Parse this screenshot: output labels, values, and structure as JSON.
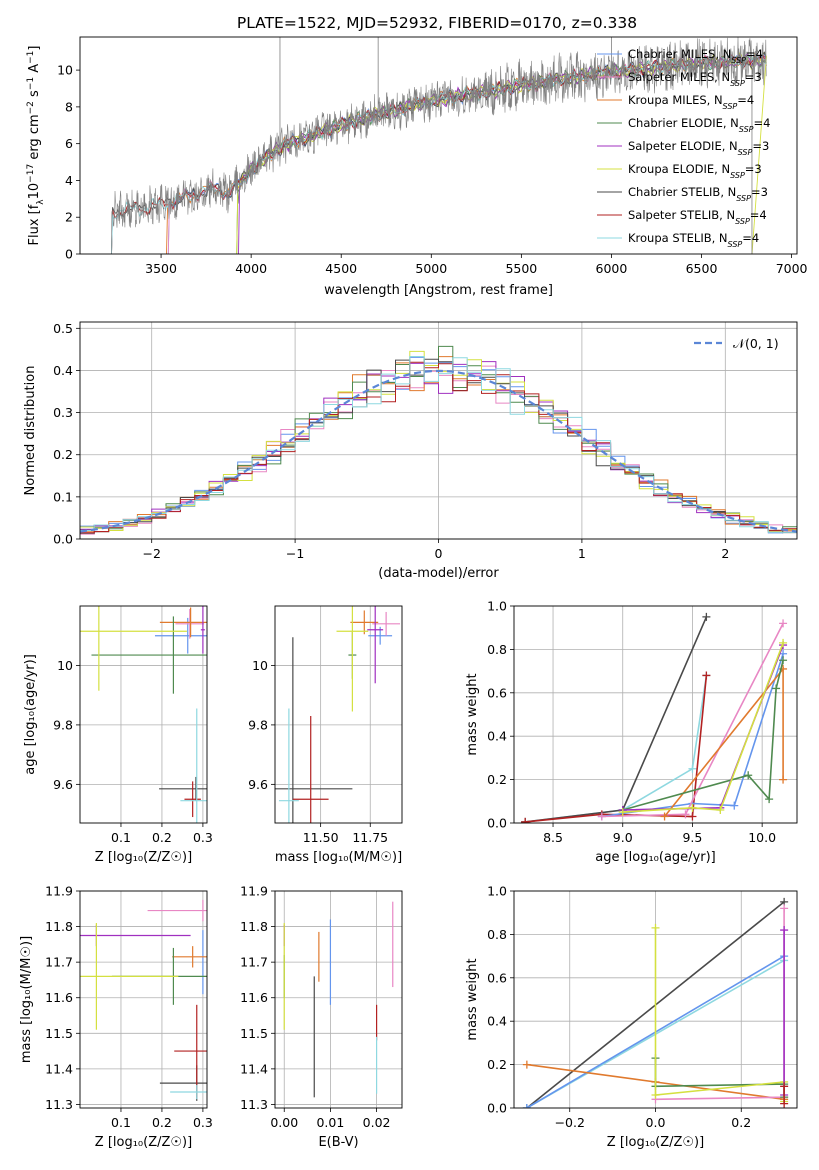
{
  "figure_title": "PLATE=1522, MJD=52932, FIBERID=0170, z=0.338",
  "colors": {
    "Chabrier MILES": "#6495ED",
    "Salpeter MILES": "#E887C4",
    "Kroupa MILES": "#E07A2E",
    "Chabrier ELODIE": "#4F8A4F",
    "Salpeter ELODIE": "#A030C0",
    "Kroupa ELODIE": "#D4E040",
    "Chabrier STELIB": "#4A4A4A",
    "Salpeter STELIB": "#B22222",
    "Kroupa STELIB": "#8ED8E0",
    "data": "#808080"
  },
  "chart_data": [
    {
      "id": "spectrum",
      "type": "line",
      "xlabel": "wavelength [Angstrom, rest frame]",
      "ylabel_parts": [
        "Flux [f",
        "λ",
        "10",
        "−17",
        " erg cm",
        "−2",
        " s",
        "−1",
        " A",
        "−1",
        "]"
      ],
      "xlim": [
        3050,
        7030
      ],
      "ylim": [
        0,
        11.8
      ],
      "xticks": [
        3500,
        4000,
        4500,
        5000,
        5500,
        6000,
        6500,
        7000
      ],
      "yticks": [
        0,
        2,
        4,
        6,
        8,
        10
      ],
      "continuum_knots": [
        [
          3220,
          0.0
        ],
        [
          3225,
          2.2
        ],
        [
          3300,
          2.4
        ],
        [
          3400,
          2.5
        ],
        [
          3500,
          2.7
        ],
        [
          3600,
          3.0
        ],
        [
          3700,
          3.3
        ],
        [
          3800,
          3.6
        ],
        [
          3870,
          3.3
        ],
        [
          3950,
          4.0
        ],
        [
          4000,
          4.6
        ],
        [
          4100,
          5.4
        ],
        [
          4200,
          6.0
        ],
        [
          4300,
          6.3
        ],
        [
          4400,
          6.7
        ],
        [
          4500,
          7.0
        ],
        [
          4600,
          7.3
        ],
        [
          4700,
          7.6
        ],
        [
          4800,
          7.8
        ],
        [
          4900,
          8.1
        ],
        [
          5000,
          8.3
        ],
        [
          5100,
          8.5
        ],
        [
          5200,
          8.7
        ],
        [
          5300,
          8.8
        ],
        [
          5400,
          9.0
        ],
        [
          5500,
          9.2
        ],
        [
          5600,
          9.3
        ],
        [
          5700,
          9.5
        ],
        [
          5800,
          9.6
        ],
        [
          5900,
          9.8
        ],
        [
          6000,
          9.9
        ],
        [
          6100,
          10.0
        ],
        [
          6200,
          10.1
        ],
        [
          6300,
          10.2
        ],
        [
          6400,
          10.3
        ],
        [
          6500,
          10.4
        ],
        [
          6600,
          10.4
        ],
        [
          6700,
          10.5
        ],
        [
          6780,
          10.5
        ],
        [
          6860,
          10.6
        ]
      ],
      "spikes": [
        [
          4160,
          11.8
        ],
        [
          4705,
          11.8
        ],
        [
          6000,
          11.8
        ]
      ],
      "dips": [
        [
          6780,
          0.0
        ]
      ],
      "series": [
        {
          "name": "Chabrier MILES",
          "sub": "SSP",
          "n": "4"
        },
        {
          "name": "Salpeter MILES",
          "sub": "SSP",
          "n": "3"
        },
        {
          "name": "Kroupa MILES",
          "sub": "SSP",
          "n": "4"
        },
        {
          "name": "Chabrier ELODIE",
          "sub": "SSP",
          "n": "4"
        },
        {
          "name": "Salpeter ELODIE",
          "sub": "SSP",
          "n": "3"
        },
        {
          "name": "Kroupa ELODIE",
          "sub": "SSP",
          "n": "3"
        },
        {
          "name": "Chabrier STELIB",
          "sub": "SSP",
          "n": "3"
        },
        {
          "name": "Salpeter STELIB",
          "sub": "SSP",
          "n": "4"
        },
        {
          "name": "Kroupa STELIB",
          "sub": "SSP",
          "n": "4"
        }
      ],
      "legend_loc": "upper right"
    },
    {
      "id": "residuals",
      "type": "line",
      "xlabel": "(data-model)/error",
      "ylabel": "Normed distribution",
      "xlim": [
        -2.5,
        2.5
      ],
      "ylim": [
        0,
        0.515
      ],
      "xticks": [
        -2,
        -1,
        0,
        1,
        2
      ],
      "xtick_labels": [
        "−2",
        "−1",
        "0",
        "1",
        "2"
      ],
      "yticks": [
        0.0,
        0.1,
        0.2,
        0.3,
        0.4,
        0.5
      ],
      "ytick_labels": [
        "0.0",
        "0.1",
        "0.2",
        "0.3",
        "0.4",
        "0.5"
      ],
      "bin_width": 0.1,
      "legend_label": "𝒩(0, 1)",
      "grid": true
    },
    {
      "id": "age_vs_Z",
      "type": "scatter",
      "xlabel": "Z [log₁₀(Z/Z☉)]",
      "ylabel": "age  [log₁₀(age/yr)]",
      "xlim": [
        0.0,
        0.31
      ],
      "ylim": [
        9.47,
        10.2
      ],
      "xticks": [
        0.1,
        0.2,
        0.3
      ],
      "yticks": [
        9.6,
        9.8,
        10.0
      ],
      "points": [
        {
          "s": "Chabrier MILES",
          "x": 0.263,
          "y": 10.1,
          "xerr": 0.08,
          "yerr": 0.06
        },
        {
          "s": "Salpeter MILES",
          "x": 0.268,
          "y": 10.14,
          "xerr": 0.035,
          "yerr": 0.05
        },
        {
          "s": "Kroupa MILES",
          "x": 0.27,
          "y": 10.145,
          "xerr": 0.075,
          "yerr": 0.05
        },
        {
          "s": "Chabrier ELODIE",
          "x": 0.228,
          "y": 10.035,
          "xerr": 0.2,
          "yerr": 0.13
        },
        {
          "s": "Salpeter ELODIE",
          "x": 0.3,
          "y": 10.12,
          "xerr": 0.005,
          "yerr": 0.08
        },
        {
          "s": "Kroupa ELODIE",
          "x": 0.046,
          "y": 10.115,
          "xerr": 0.215,
          "yerr": 0.2
        },
        {
          "s": "Chabrier STELIB",
          "x": 0.283,
          "y": 9.585,
          "xerr": 0.09,
          "yerr": 0.04
        },
        {
          "s": "Salpeter STELIB",
          "x": 0.275,
          "y": 9.55,
          "xerr": 0.02,
          "yerr": 0.06
        },
        {
          "s": "Kroupa STELIB",
          "x": 0.285,
          "y": 9.545,
          "xerr": 0.04,
          "yerr": 0.31
        }
      ]
    },
    {
      "id": "age_vs_mass",
      "type": "scatter",
      "xlabel": "mass [log₁₀(M/M☉)]",
      "ylabel": "",
      "xlim": [
        11.27,
        11.91
      ],
      "ylim": [
        9.47,
        10.2
      ],
      "xticks": [
        11.5,
        11.75
      ],
      "xtick_labels": [
        "11.50",
        "11.75"
      ],
      "yticks": [
        9.6,
        9.8,
        10.0
      ],
      "points": [
        {
          "s": "Chabrier MILES",
          "x": 11.8,
          "y": 10.1,
          "xerr": 0.06,
          "yerr": 0.03
        },
        {
          "s": "Salpeter MILES",
          "x": 11.83,
          "y": 10.14,
          "xerr": 0.07,
          "yerr": 0.04
        },
        {
          "s": "Kroupa MILES",
          "x": 11.72,
          "y": 10.145,
          "xerr": 0.07,
          "yerr": 0.04
        },
        {
          "s": "Chabrier ELODIE",
          "x": 11.66,
          "y": 10.035,
          "xerr": 0.02,
          "yerr": 0.08
        },
        {
          "s": "Salpeter ELODIE",
          "x": 11.775,
          "y": 10.12,
          "xerr": 0.04,
          "yerr": 0.18
        },
        {
          "s": "Kroupa ELODIE",
          "x": 11.66,
          "y": 10.115,
          "xerr": 0.08,
          "yerr": 0.27
        },
        {
          "s": "Chabrier STELIB",
          "x": 11.36,
          "y": 9.585,
          "xerr": 0.3,
          "yerr": 0.51
        },
        {
          "s": "Salpeter STELIB",
          "x": 11.45,
          "y": 9.55,
          "xerr": 0.09,
          "yerr": 0.28
        },
        {
          "s": "Kroupa STELIB",
          "x": 11.34,
          "y": 9.545,
          "xerr": 0.05,
          "yerr": 0.31
        }
      ]
    },
    {
      "id": "weight_vs_age",
      "type": "line",
      "xlabel": "age  [log₁₀(age/yr)]",
      "ylabel": "mass weight",
      "xlim": [
        8.22,
        10.25
      ],
      "ylim": [
        0,
        1.0
      ],
      "xticks": [
        8.5,
        9.0,
        9.5,
        10.0
      ],
      "xtick_labels": [
        "8.5",
        "9.0",
        "9.5",
        "10.0"
      ],
      "yticks": [
        0,
        0.2,
        0.4,
        0.6,
        0.8,
        1.0
      ],
      "ytick_labels": [
        "0.0",
        "0.2",
        "0.4",
        "0.6",
        "0.8",
        "1.0"
      ],
      "grid": true,
      "series": [
        {
          "s": "Kroupa STELIB",
          "pts": [
            [
              8.3,
              0.005
            ],
            [
              9.0,
              0.06
            ],
            [
              9.5,
              0.25
            ],
            [
              9.6,
              0.68
            ]
          ]
        },
        {
          "s": "Chabrier STELIB",
          "pts": [
            [
              8.3,
              0.005
            ],
            [
              9.0,
              0.06
            ],
            [
              9.6,
              0.95
            ]
          ]
        },
        {
          "s": "Salpeter STELIB",
          "pts": [
            [
              8.3,
              0.005
            ],
            [
              8.85,
              0.04
            ],
            [
              9.5,
              0.03
            ],
            [
              9.6,
              0.68
            ]
          ]
        },
        {
          "s": "Chabrier MILES",
          "pts": [
            [
              8.85,
              0.03
            ],
            [
              9.5,
              0.09
            ],
            [
              9.8,
              0.08
            ],
            [
              10.15,
              0.78
            ]
          ]
        },
        {
          "s": "Salpeter MILES",
          "pts": [
            [
              8.85,
              0.03
            ],
            [
              9.45,
              0.04
            ],
            [
              10.15,
              0.92
            ]
          ]
        },
        {
          "s": "Kroupa MILES",
          "pts": [
            [
              9.3,
              0.03
            ],
            [
              10.15,
              0.71
            ],
            [
              10.15,
              0.2
            ]
          ]
        },
        {
          "s": "Chabrier ELODIE",
          "pts": [
            [
              9.0,
              0.06
            ],
            [
              9.9,
              0.22
            ],
            [
              10.05,
              0.11
            ],
            [
              10.1,
              0.62
            ],
            [
              10.15,
              0.75
            ]
          ]
        },
        {
          "s": "Salpeter ELODIE",
          "pts": [
            [
              9.0,
              0.06
            ],
            [
              9.7,
              0.07
            ],
            [
              10.15,
              0.82
            ]
          ]
        },
        {
          "s": "Kroupa ELODIE",
          "pts": [
            [
              9.0,
              0.05
            ],
            [
              9.5,
              0.07
            ],
            [
              9.7,
              0.06
            ],
            [
              10.15,
              0.83
            ]
          ]
        }
      ]
    },
    {
      "id": "mass_vs_Z",
      "type": "scatter",
      "xlabel": "Z [log₁₀(Z/Z☉)]",
      "ylabel": "mass [log₁₀(M/M☉)]",
      "xlim": [
        0.0,
        0.31
      ],
      "ylim": [
        11.29,
        11.9
      ],
      "xticks": [
        0.1,
        0.2,
        0.3
      ],
      "yticks": [
        11.3,
        11.4,
        11.5,
        11.6,
        11.7,
        11.8,
        11.9
      ],
      "points": [
        {
          "s": "Chabrier MILES",
          "x": 0.3,
          "y": 11.7,
          "xerr": 0.0,
          "yerr": 0.09
        },
        {
          "s": "Salpeter MILES",
          "x": 0.3,
          "y": 11.845,
          "xerr": 0.135,
          "yerr": 0.03
        },
        {
          "s": "Kroupa MILES",
          "x": 0.275,
          "y": 11.715,
          "xerr": 0.05,
          "yerr": 0.03
        },
        {
          "s": "Chabrier ELODIE",
          "x": 0.228,
          "y": 11.66,
          "xerr": 0.15,
          "yerr": 0.08
        },
        {
          "s": "Salpeter ELODIE",
          "x": 0.04,
          "y": 11.775,
          "xerr": 0.23,
          "yerr": 0.03
        },
        {
          "s": "Kroupa ELODIE",
          "x": 0.04,
          "y": 11.66,
          "xerr": 0.2,
          "yerr": 0.15
        },
        {
          "s": "Chabrier STELIB",
          "x": 0.285,
          "y": 11.36,
          "xerr": 0.09,
          "yerr": 0.05
        },
        {
          "s": "Salpeter STELIB",
          "x": 0.285,
          "y": 11.45,
          "xerr": 0.055,
          "yerr": 0.13
        },
        {
          "s": "Kroupa STELIB",
          "x": 0.285,
          "y": 11.335,
          "xerr": 0.065,
          "yerr": 0.02
        }
      ]
    },
    {
      "id": "mass_vs_ebv",
      "type": "scatter",
      "xlabel": "E(B-V)",
      "ylabel": "",
      "xlim": [
        -0.002,
        0.0255
      ],
      "ylim": [
        11.29,
        11.9
      ],
      "xticks": [
        0.0,
        0.01,
        0.02
      ],
      "xtick_labels": [
        "0.00",
        "0.01",
        "0.02"
      ],
      "yticks": [
        11.3,
        11.4,
        11.5,
        11.6,
        11.7,
        11.8,
        11.9
      ],
      "points": [
        {
          "s": "Chabrier MILES",
          "x": 0.01,
          "y": 11.7,
          "xerr": 0.0,
          "yerr": 0.12
        },
        {
          "s": "Salpeter MILES",
          "x": 0.0235,
          "y": 11.75,
          "xerr": 0.0,
          "yerr": 0.12
        },
        {
          "s": "Kroupa MILES",
          "x": 0.0075,
          "y": 11.715,
          "xerr": 0.0,
          "yerr": 0.07
        },
        {
          "s": "Chabrier ELODIE",
          "x": 0.0,
          "y": 11.66,
          "xerr": 0.0,
          "yerr": 0.06
        },
        {
          "s": "Salpeter ELODIE",
          "x": 0.0,
          "y": 11.775,
          "xerr": 0.0,
          "yerr": 0.03
        },
        {
          "s": "Kroupa ELODIE",
          "x": 0.0,
          "y": 11.66,
          "xerr": 0.0,
          "yerr": 0.15
        },
        {
          "s": "Chabrier STELIB",
          "x": 0.0065,
          "y": 11.49,
          "xerr": 0.0,
          "yerr": 0.17
        },
        {
          "s": "Salpeter STELIB",
          "x": 0.02,
          "y": 11.53,
          "xerr": 0.0,
          "yerr": 0.05
        },
        {
          "s": "Kroupa STELIB",
          "x": 0.02,
          "y": 11.41,
          "xerr": 0.0,
          "yerr": 0.08
        }
      ]
    },
    {
      "id": "weight_vs_Z",
      "type": "line",
      "xlabel": "Z [log₁₀(Z/Z☉)]",
      "ylabel": "mass weight",
      "xlim": [
        -0.33,
        0.33
      ],
      "ylim": [
        0,
        1.0
      ],
      "xticks": [
        -0.2,
        0.0,
        0.2
      ],
      "xtick_labels": [
        "−0.2",
        "0.0",
        "0.2"
      ],
      "yticks": [
        0,
        0.2,
        0.4,
        0.6,
        0.8,
        1.0
      ],
      "ytick_labels": [
        "0.0",
        "0.2",
        "0.4",
        "0.6",
        "0.8",
        "1.0"
      ],
      "grid": true,
      "series": [
        {
          "s": "Chabrier STELIB",
          "pts": [
            [
              -0.3,
              0.0
            ],
            [
              0.3,
              0.95
            ]
          ]
        },
        {
          "s": "Kroupa STELIB",
          "pts": [
            [
              -0.3,
              0.0
            ],
            [
              0.3,
              0.68
            ]
          ]
        },
        {
          "s": "Chabrier MILES",
          "pts": [
            [
              -0.3,
              0.0
            ],
            [
              0.3,
              0.7
            ]
          ]
        },
        {
          "s": "Kroupa MILES",
          "pts": [
            [
              -0.3,
              0.2
            ],
            [
              0.0,
              0.12
            ],
            [
              0.3,
              0.04
            ]
          ]
        },
        {
          "s": "Salpeter MILES",
          "pts": [
            [
              0.0,
              0.04
            ],
            [
              0.3,
              0.05
            ],
            [
              0.3,
              0.92
            ]
          ]
        },
        {
          "s": "Chabrier ELODIE",
          "pts": [
            [
              0.0,
              0.23
            ],
            [
              0.0,
              0.1
            ],
            [
              0.3,
              0.11
            ],
            [
              0.3,
              0.05
            ]
          ]
        },
        {
          "s": "Kroupa ELODIE",
          "pts": [
            [
              0.0,
              0.83
            ],
            [
              0.0,
              0.06
            ],
            [
              0.3,
              0.12
            ],
            [
              0.3,
              0.03
            ]
          ]
        },
        {
          "s": "Salpeter ELODIE",
          "pts": [
            [
              0.3,
              0.06
            ],
            [
              0.3,
              0.82
            ]
          ]
        },
        {
          "s": "Salpeter STELIB",
          "pts": [
            [
              0.3,
              0.02
            ],
            [
              0.3,
              0.1
            ]
          ]
        }
      ]
    }
  ]
}
